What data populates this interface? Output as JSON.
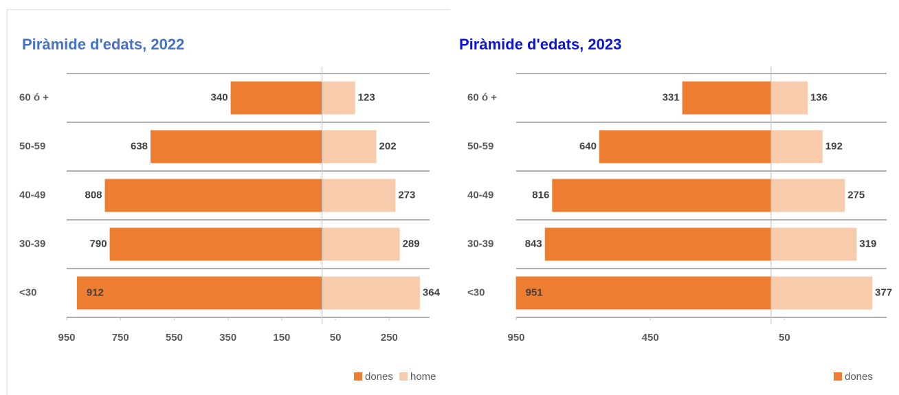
{
  "chart_data": [
    {
      "type": "pyramid",
      "title": "Piràmide d'edats, 2022",
      "title_color": "#4472c4",
      "categories": [
        "60 ó +",
        "50-59",
        "40-49",
        "30-39",
        "<30"
      ],
      "series": [
        {
          "name": "dones",
          "color": "#ed7d31",
          "values": [
            -340,
            -638,
            -808,
            -790,
            -912
          ],
          "value_labels": [
            "340",
            "638",
            "808",
            "790",
            "912"
          ]
        },
        {
          "name": "home",
          "color": "#f8cbad",
          "values": [
            123,
            202,
            273,
            289,
            364
          ]
        }
      ],
      "xlim": [
        -950,
        400
      ],
      "xticks": [
        {
          "value": -950,
          "label": "950"
        },
        {
          "value": -750,
          "label": "750"
        },
        {
          "value": -550,
          "label": "550"
        },
        {
          "value": -350,
          "label": "350"
        },
        {
          "value": -150,
          "label": "150"
        },
        50,
        250
      ],
      "grid": true
    },
    {
      "type": "pyramid",
      "title": "Piràmide d'edats, 2023",
      "title_color": "#0a14d8",
      "categories": [
        "60 ó +",
        "50-59",
        "40-49",
        "30-39",
        "<30"
      ],
      "series": [
        {
          "name": "dones",
          "color": "#ed7d31",
          "values": [
            -331,
            -640,
            -816,
            -843,
            -951
          ],
          "value_labels": [
            "331",
            "640",
            "816",
            "843",
            "951"
          ]
        },
        {
          "color": "#f8cbad",
          "values": [
            136,
            192,
            275,
            319,
            377
          ]
        }
      ],
      "xlim": [
        -950,
        400
      ],
      "xticks": [
        {
          "value": -950,
          "label": "950"
        },
        {
          "value": -450,
          "label": "450"
        },
        50
      ],
      "grid": true
    }
  ]
}
